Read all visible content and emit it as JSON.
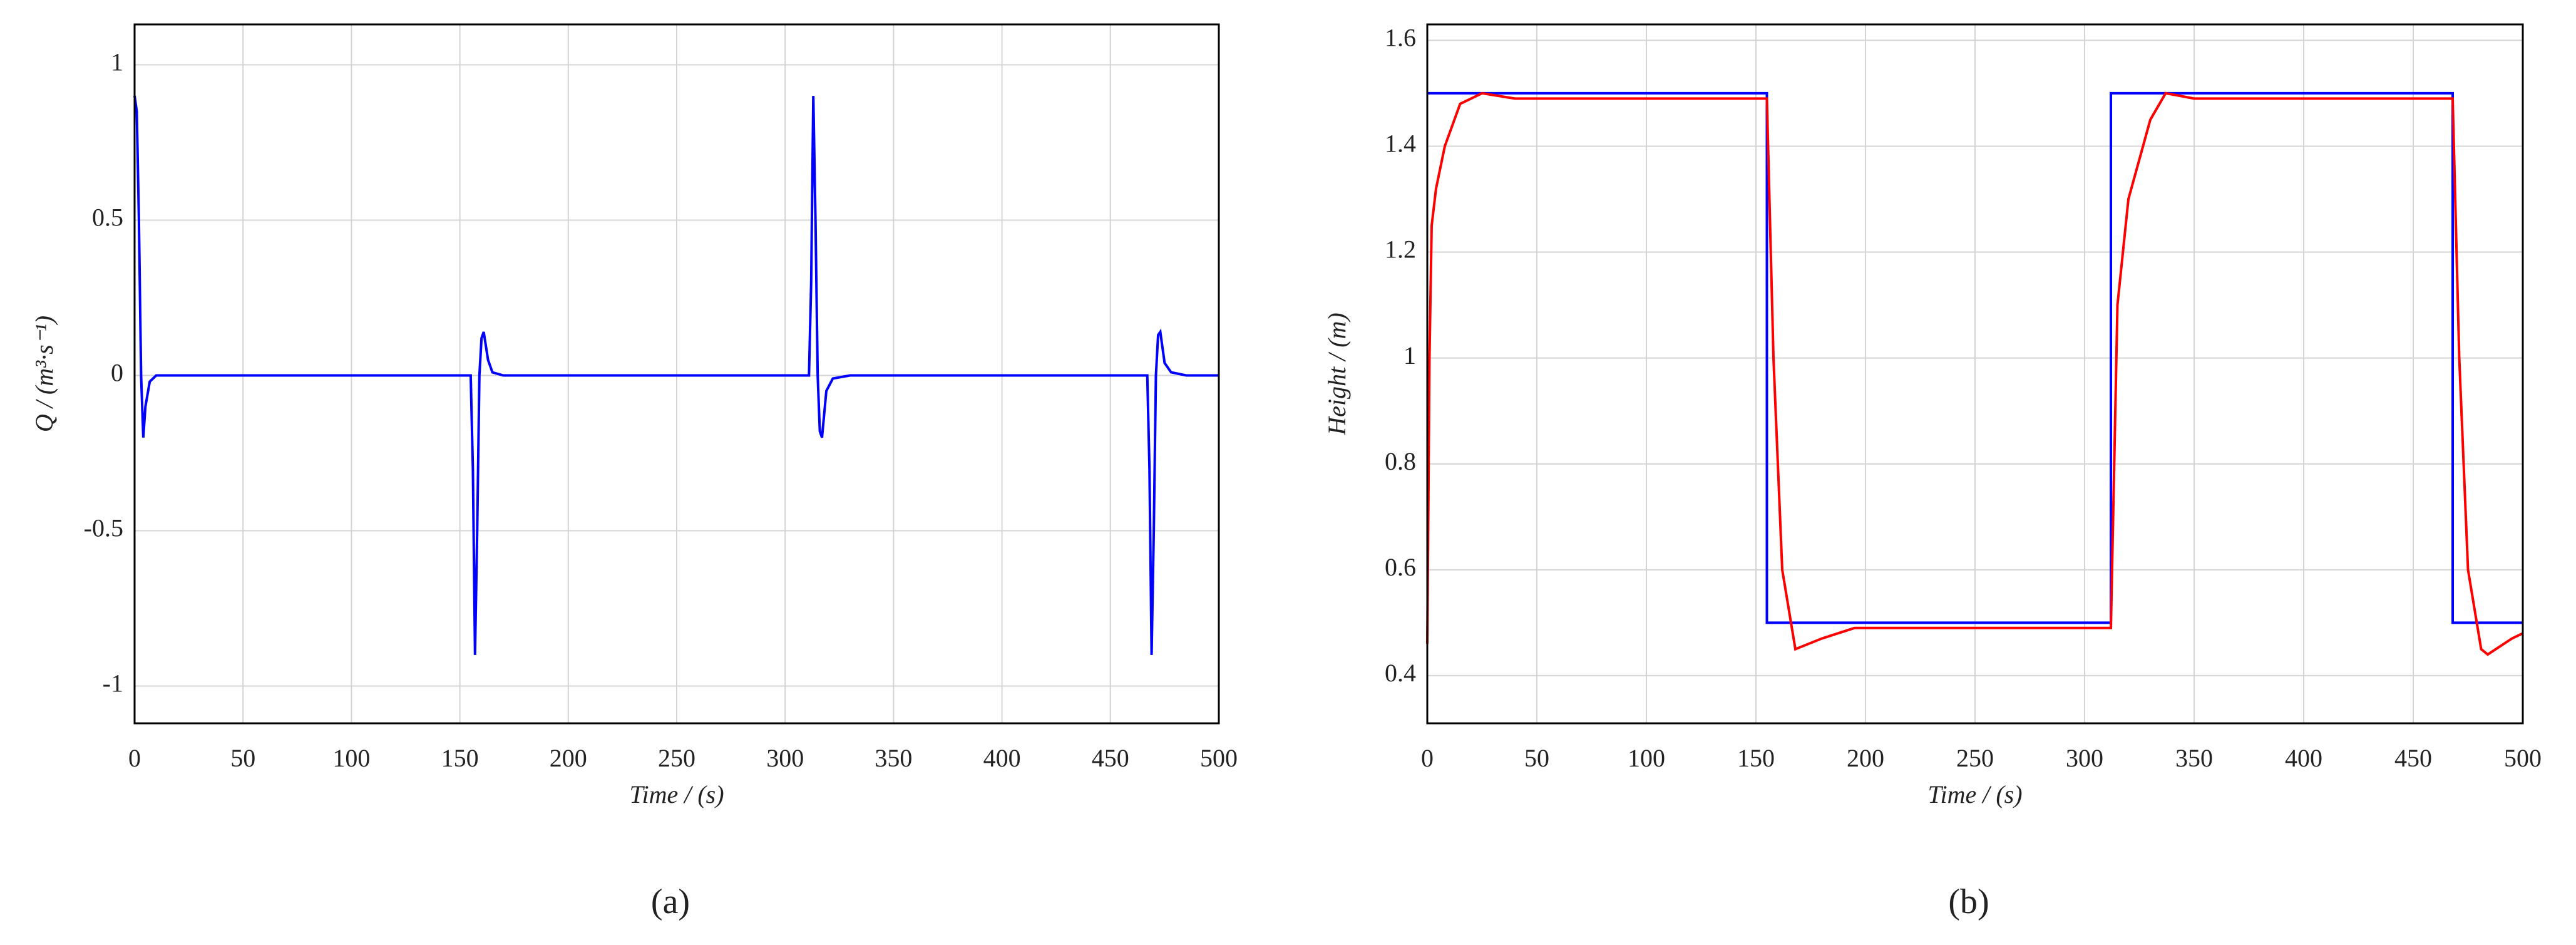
{
  "chart_data": [
    {
      "type": "line",
      "caption": "(a)",
      "xlabel": "Time / (s)",
      "ylabel": "Q / (m³·s⁻¹)",
      "xlim": [
        0,
        500
      ],
      "ylim": [
        -1.12,
        1.13
      ],
      "xticks": [
        0,
        50,
        100,
        150,
        200,
        250,
        300,
        350,
        400,
        450,
        500
      ],
      "yticks": [
        -1,
        -0.5,
        0,
        0.5,
        1
      ],
      "grid": true,
      "series": [
        {
          "color": "#0000ff",
          "x": [
            0,
            1,
            2,
            3,
            4,
            5,
            7,
            10,
            155,
            156,
            157,
            158,
            159,
            160,
            161,
            163,
            165,
            170,
            311,
            312,
            313,
            314,
            315,
            316,
            317,
            319,
            322,
            330,
            467,
            468,
            469,
            470,
            471,
            472,
            473,
            475,
            478,
            485,
            500
          ],
          "values": [
            0.9,
            0.85,
            0.5,
            0,
            -0.2,
            -0.1,
            -0.02,
            0,
            0,
            -0.3,
            -0.9,
            -0.5,
            0,
            0.12,
            0.14,
            0.05,
            0.01,
            0,
            0,
            0.3,
            0.9,
            0.5,
            0,
            -0.18,
            -0.2,
            -0.05,
            -0.01,
            0,
            0,
            -0.3,
            -0.9,
            -0.5,
            0,
            0.13,
            0.14,
            0.04,
            0.01,
            0,
            0
          ]
        }
      ]
    },
    {
      "type": "line",
      "caption": "(b)",
      "xlabel": "Time / (s)",
      "ylabel": "Height / (m)",
      "xlim": [
        0,
        500
      ],
      "ylim": [
        0.31,
        1.63
      ],
      "xticks": [
        0,
        50,
        100,
        150,
        200,
        250,
        300,
        350,
        400,
        450,
        500
      ],
      "yticks": [
        0.4,
        0.6,
        0.8,
        1,
        1.2,
        1.4,
        1.6
      ],
      "grid": true,
      "series": [
        {
          "color": "#0000ff",
          "x": [
            0,
            155,
            155,
            312,
            312,
            468,
            468,
            500
          ],
          "values": [
            1.5,
            1.5,
            0.5,
            0.5,
            1.5,
            1.5,
            0.5,
            0.5
          ]
        },
        {
          "color": "#ff0000",
          "x": [
            0,
            1,
            2,
            4,
            8,
            15,
            25,
            40,
            155,
            158,
            162,
            168,
            180,
            195,
            312,
            315,
            320,
            330,
            337,
            350,
            468,
            471,
            475,
            481,
            484,
            495,
            500
          ],
          "values": [
            0.46,
            1.0,
            1.25,
            1.32,
            1.4,
            1.48,
            1.5,
            1.49,
            1.49,
            1.0,
            0.6,
            0.45,
            0.47,
            0.49,
            0.49,
            1.1,
            1.3,
            1.45,
            1.5,
            1.49,
            1.49,
            1.0,
            0.6,
            0.45,
            0.44,
            0.47,
            0.48
          ]
        }
      ]
    }
  ]
}
